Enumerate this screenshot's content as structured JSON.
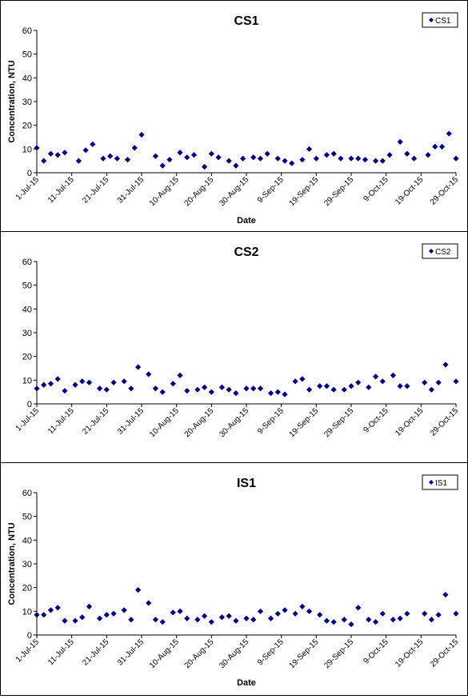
{
  "axis_labels": {
    "x": "Date",
    "y": "Concentration, NTU"
  },
  "marker_color": "#000080",
  "chart_data": [
    {
      "type": "scatter",
      "title": "CS1",
      "legend": "CS1",
      "legend_position": "top-right",
      "xlabel": "Date",
      "ylabel": "Concentration, NTU",
      "ylim": [
        0,
        60
      ],
      "yticks": [
        0,
        10,
        20,
        30,
        40,
        50,
        60
      ],
      "xlim": [
        "2015-07-01",
        "2015-10-29"
      ],
      "xticks": [
        "2015-07-01",
        "2015-07-11",
        "2015-07-21",
        "2015-07-31",
        "2015-08-10",
        "2015-08-20",
        "2015-08-30",
        "2015-09-09",
        "2015-09-19",
        "2015-09-29",
        "2015-10-09",
        "2015-10-19",
        "2015-10-29"
      ],
      "xtick_labels": [
        "1-Jul-15",
        "11-Jul-15",
        "21-Jul-15",
        "31-Jul-15",
        "10-Aug-15",
        "20-Aug-15",
        "30-Aug-15",
        "9-Sep-15",
        "19-Sep-15",
        "29-Sep-15",
        "9-Oct-15",
        "19-Oct-15",
        "29-Oct-15"
      ],
      "grid": false,
      "points": [
        [
          "2015-07-01",
          10.5
        ],
        [
          "2015-07-03",
          5
        ],
        [
          "2015-07-05",
          8
        ],
        [
          "2015-07-07",
          7.5
        ],
        [
          "2015-07-09",
          8.5
        ],
        [
          "2015-07-13",
          5
        ],
        [
          "2015-07-15",
          9.5
        ],
        [
          "2015-07-17",
          12
        ],
        [
          "2015-07-20",
          6
        ],
        [
          "2015-07-22",
          7
        ],
        [
          "2015-07-24",
          6
        ],
        [
          "2015-07-27",
          5.5
        ],
        [
          "2015-07-29",
          10.5
        ],
        [
          "2015-07-31",
          16
        ],
        [
          "2015-08-04",
          7
        ],
        [
          "2015-08-06",
          3
        ],
        [
          "2015-08-08",
          5.5
        ],
        [
          "2015-08-11",
          8.5
        ],
        [
          "2015-08-13",
          6.5
        ],
        [
          "2015-08-15",
          7.5
        ],
        [
          "2015-08-18",
          2.5
        ],
        [
          "2015-08-20",
          8
        ],
        [
          "2015-08-22",
          6.5
        ],
        [
          "2015-08-25",
          5
        ],
        [
          "2015-08-27",
          3
        ],
        [
          "2015-08-29",
          6
        ],
        [
          "2015-09-01",
          6.5
        ],
        [
          "2015-09-03",
          6
        ],
        [
          "2015-09-05",
          8
        ],
        [
          "2015-09-08",
          6
        ],
        [
          "2015-09-10",
          5
        ],
        [
          "2015-09-12",
          4
        ],
        [
          "2015-09-15",
          5.5
        ],
        [
          "2015-09-17",
          10
        ],
        [
          "2015-09-19",
          6
        ],
        [
          "2015-09-22",
          7.5
        ],
        [
          "2015-09-24",
          8
        ],
        [
          "2015-09-26",
          6
        ],
        [
          "2015-09-29",
          6
        ],
        [
          "2015-10-01",
          6
        ],
        [
          "2015-10-03",
          5.5
        ],
        [
          "2015-10-06",
          5
        ],
        [
          "2015-10-08",
          5
        ],
        [
          "2015-10-10",
          7.5
        ],
        [
          "2015-10-13",
          13
        ],
        [
          "2015-10-15",
          8
        ],
        [
          "2015-10-17",
          6
        ],
        [
          "2015-10-21",
          7.5
        ],
        [
          "2015-10-23",
          11
        ],
        [
          "2015-10-25",
          11
        ],
        [
          "2015-10-27",
          16.5
        ],
        [
          "2015-10-29",
          6
        ]
      ]
    },
    {
      "type": "scatter",
      "title": "CS2",
      "legend": "CS2",
      "legend_position": "top-right",
      "xlabel": "",
      "ylabel": "",
      "ylim": [
        0,
        60
      ],
      "yticks": [
        0,
        10,
        20,
        30,
        40,
        50,
        60
      ],
      "xlim": [
        "2015-07-01",
        "2015-10-29"
      ],
      "xticks": [
        "2015-07-01",
        "2015-07-11",
        "2015-07-21",
        "2015-07-31",
        "2015-08-10",
        "2015-08-20",
        "2015-08-30",
        "2015-09-09",
        "2015-09-19",
        "2015-09-29",
        "2015-10-09",
        "2015-10-19",
        "2015-10-29"
      ],
      "xtick_labels": [
        "1-Jul-15",
        "11-Jul-15",
        "21-Jul-15",
        "31-Jul-15",
        "10-Aug-15",
        "20-Aug-15",
        "30-Aug-15",
        "9-Sep-15",
        "19-Sep-15",
        "29-Sep-15",
        "9-Oct-15",
        "19-Oct-15",
        "29-Oct-15"
      ],
      "grid": false,
      "points": [
        [
          "2015-07-01",
          6.5
        ],
        [
          "2015-07-03",
          8
        ],
        [
          "2015-07-05",
          8.5
        ],
        [
          "2015-07-07",
          10.5
        ],
        [
          "2015-07-09",
          5.5
        ],
        [
          "2015-07-12",
          8
        ],
        [
          "2015-07-14",
          9.5
        ],
        [
          "2015-07-16",
          9
        ],
        [
          "2015-07-19",
          6.5
        ],
        [
          "2015-07-21",
          6
        ],
        [
          "2015-07-23",
          9
        ],
        [
          "2015-07-26",
          9.5
        ],
        [
          "2015-07-28",
          6.5
        ],
        [
          "2015-07-30",
          15.5
        ],
        [
          "2015-08-02",
          12.5
        ],
        [
          "2015-08-04",
          6.5
        ],
        [
          "2015-08-06",
          5
        ],
        [
          "2015-08-09",
          8.5
        ],
        [
          "2015-08-11",
          12
        ],
        [
          "2015-08-13",
          5.5
        ],
        [
          "2015-08-16",
          6
        ],
        [
          "2015-08-18",
          7
        ],
        [
          "2015-08-20",
          5
        ],
        [
          "2015-08-23",
          7
        ],
        [
          "2015-08-25",
          6
        ],
        [
          "2015-08-27",
          4.5
        ],
        [
          "2015-08-30",
          6.5
        ],
        [
          "2015-09-01",
          6.5
        ],
        [
          "2015-09-03",
          6.5
        ],
        [
          "2015-09-06",
          4.5
        ],
        [
          "2015-09-08",
          5
        ],
        [
          "2015-09-10",
          4
        ],
        [
          "2015-09-13",
          9.5
        ],
        [
          "2015-09-15",
          10.5
        ],
        [
          "2015-09-17",
          6
        ],
        [
          "2015-09-20",
          7.5
        ],
        [
          "2015-09-22",
          7.5
        ],
        [
          "2015-09-24",
          6
        ],
        [
          "2015-09-27",
          6
        ],
        [
          "2015-09-29",
          7.5
        ],
        [
          "2015-10-01",
          9
        ],
        [
          "2015-10-04",
          7
        ],
        [
          "2015-10-06",
          11.5
        ],
        [
          "2015-10-08",
          9.5
        ],
        [
          "2015-10-11",
          12
        ],
        [
          "2015-10-13",
          7.5
        ],
        [
          "2015-10-15",
          7.5
        ],
        [
          "2015-10-20",
          9
        ],
        [
          "2015-10-22",
          6
        ],
        [
          "2015-10-24",
          9
        ],
        [
          "2015-10-26",
          16.5
        ],
        [
          "2015-10-29",
          9.5
        ]
      ]
    },
    {
      "type": "scatter",
      "title": "IS1",
      "legend": "IS1",
      "legend_position": "top-right",
      "xlabel": "Date",
      "ylabel": "Concentration, NTU",
      "ylim": [
        0,
        60
      ],
      "yticks": [
        0,
        10,
        20,
        30,
        40,
        50,
        60
      ],
      "xlim": [
        "2015-07-01",
        "2015-10-29"
      ],
      "xticks": [
        "2015-07-01",
        "2015-07-11",
        "2015-07-21",
        "2015-07-31",
        "2015-08-10",
        "2015-08-20",
        "2015-08-30",
        "2015-09-09",
        "2015-09-19",
        "2015-09-29",
        "2015-10-09",
        "2015-10-19",
        "2015-10-29"
      ],
      "xtick_labels": [
        "1-Jul-15",
        "11-Jul-15",
        "21-Jul-15",
        "31-Jul-15",
        "10-Aug-15",
        "20-Aug-15",
        "30-Aug-15",
        "9-Sep-15",
        "19-Sep-15",
        "29-Sep-15",
        "9-Oct-15",
        "19-Oct-15",
        "29-Oct-15"
      ],
      "grid": false,
      "points": [
        [
          "2015-07-01",
          8.5
        ],
        [
          "2015-07-03",
          8.5
        ],
        [
          "2015-07-05",
          10.5
        ],
        [
          "2015-07-07",
          11.5
        ],
        [
          "2015-07-09",
          6
        ],
        [
          "2015-07-12",
          6
        ],
        [
          "2015-07-14",
          7.5
        ],
        [
          "2015-07-16",
          12
        ],
        [
          "2015-07-19",
          7
        ],
        [
          "2015-07-21",
          8.5
        ],
        [
          "2015-07-23",
          9
        ],
        [
          "2015-07-26",
          10.5
        ],
        [
          "2015-07-28",
          6.5
        ],
        [
          "2015-07-30",
          19
        ],
        [
          "2015-08-02",
          13.5
        ],
        [
          "2015-08-04",
          6.5
        ],
        [
          "2015-08-06",
          5.5
        ],
        [
          "2015-08-09",
          9.5
        ],
        [
          "2015-08-11",
          10
        ],
        [
          "2015-08-13",
          7
        ],
        [
          "2015-08-16",
          6.5
        ],
        [
          "2015-08-18",
          8
        ],
        [
          "2015-08-20",
          5.5
        ],
        [
          "2015-08-23",
          7.5
        ],
        [
          "2015-08-25",
          8
        ],
        [
          "2015-08-27",
          6
        ],
        [
          "2015-08-30",
          7
        ],
        [
          "2015-09-01",
          6.5
        ],
        [
          "2015-09-03",
          10
        ],
        [
          "2015-09-06",
          7
        ],
        [
          "2015-09-08",
          9
        ],
        [
          "2015-09-10",
          10.5
        ],
        [
          "2015-09-13",
          9
        ],
        [
          "2015-09-15",
          12
        ],
        [
          "2015-09-17",
          10
        ],
        [
          "2015-09-20",
          8.5
        ],
        [
          "2015-09-22",
          6
        ],
        [
          "2015-09-24",
          5.5
        ],
        [
          "2015-09-27",
          6.5
        ],
        [
          "2015-09-29",
          4.5
        ],
        [
          "2015-10-01",
          11.5
        ],
        [
          "2015-10-04",
          6.5
        ],
        [
          "2015-10-06",
          5.5
        ],
        [
          "2015-10-08",
          9
        ],
        [
          "2015-10-11",
          6.5
        ],
        [
          "2015-10-13",
          7
        ],
        [
          "2015-10-15",
          9
        ],
        [
          "2015-10-20",
          9
        ],
        [
          "2015-10-22",
          6.5
        ],
        [
          "2015-10-24",
          8.5
        ],
        [
          "2015-10-26",
          17
        ],
        [
          "2015-10-29",
          9
        ]
      ]
    }
  ]
}
